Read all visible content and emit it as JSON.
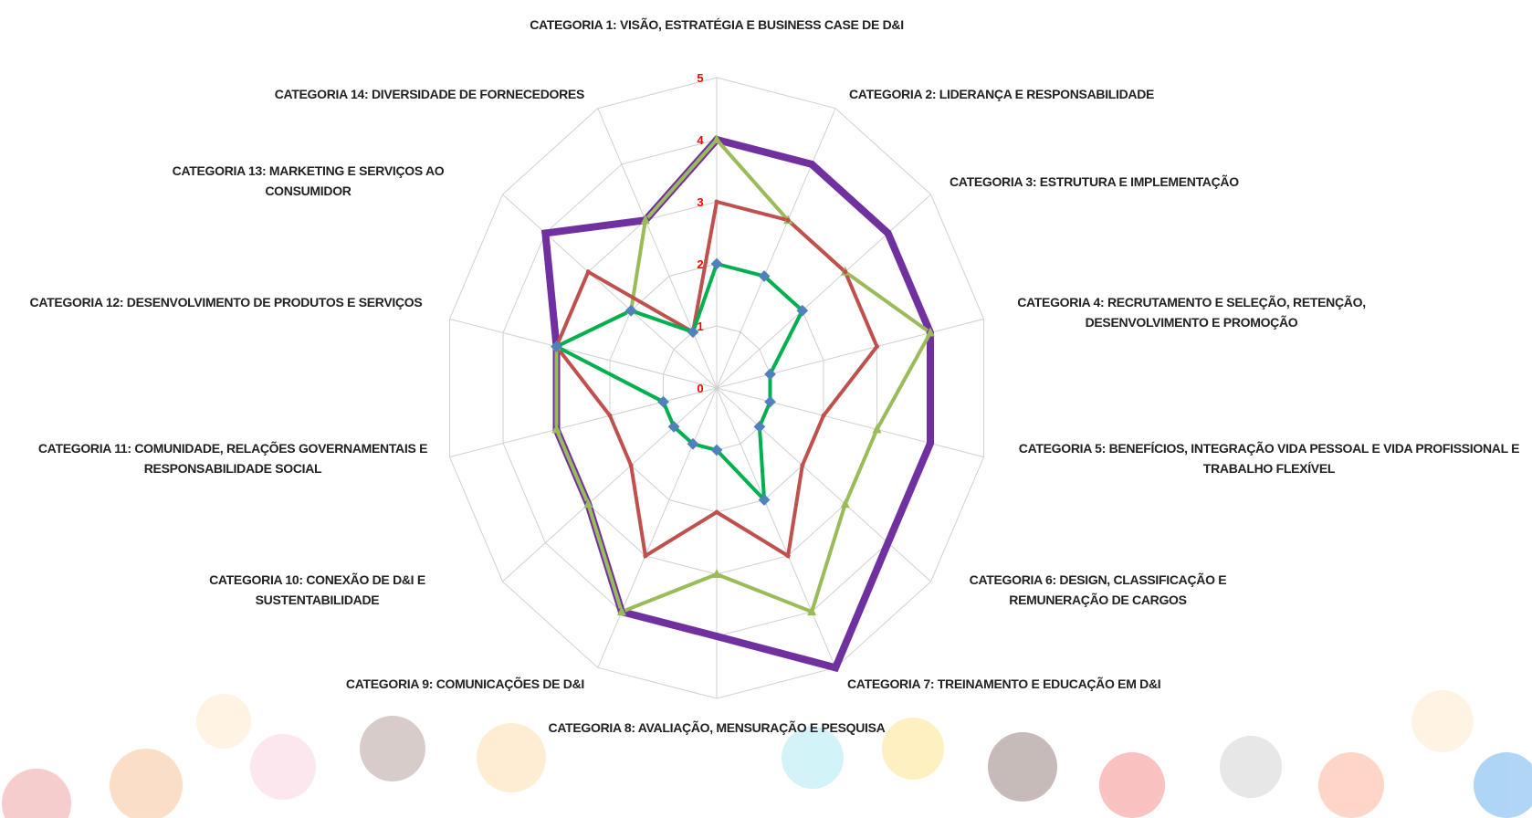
{
  "chart_data": {
    "type": "radar",
    "title": null,
    "categories": [
      "CATEGORIA 1: VISÃO, ESTRATÉGIA E BUSINESS CASE DE D&I",
      "CATEGORIA 2: LIDERANÇA E RESPONSABILIDADE",
      "CATEGORIA 3: ESTRUTURA E IMPLEMENTAÇÃO",
      "CATEGORIA 4: RECRUTAMENTO E SELEÇÃO, RETENÇÃO, DESENVOLVIMENTO E PROMOÇÃO",
      "CATEGORIA 5: BENEFÍCIOS, INTEGRAÇÃO VIDA PESSOAL E VIDA PROFISSIONAL E TRABALHO FLEXÍVEL",
      "CATEGORIA 6: DESIGN, CLASSIFICAÇÃO E REMUNERAÇÃO DE CARGOS",
      "CATEGORIA 7: TREINAMENTO E EDUCAÇÃO EM D&I",
      "CATEGORIA 8: AVALIAÇÃO, MENSURAÇÃO E PESQUISA",
      "CATEGORIA 9: COMUNICAÇÕES DE D&I",
      "CATEGORIA 10: CONEXÃO DE D&I E SUSTENTABILIDADE",
      "CATEGORIA 11: COMUNIDADE, RELAÇÕES GOVERNAMENTAIS E RESPONSABILIDADE SOCIAL",
      "CATEGORIA 12: DESENVOLVIMENTO DE PRODUTOS E SERVIÇOS",
      "CATEGORIA 13: MARKETING E SERVIÇOS AO CONSUMIDOR",
      "CATEGORIA 14: DIVERSIDADE DE FORNECEDORES"
    ],
    "series": [
      {
        "color": "#7030a0",
        "values": [
          4,
          4,
          4,
          4,
          4,
          4,
          5,
          4,
          4,
          3,
          3,
          3,
          4,
          3
        ]
      },
      {
        "color": "#9bbb59",
        "values": [
          4,
          3,
          3,
          4,
          3,
          3,
          4,
          3,
          4,
          3,
          3,
          3,
          2,
          3
        ]
      },
      {
        "color": "#c0504d",
        "values": [
          3,
          3,
          3,
          3,
          2,
          2,
          3,
          2,
          3,
          2,
          2,
          3,
          3,
          1
        ]
      },
      {
        "color": "#00b050",
        "values": [
          2,
          2,
          2,
          1,
          1,
          1,
          2,
          1,
          1,
          1,
          1,
          3,
          2,
          1
        ]
      }
    ],
    "rlim": [
      0,
      5
    ],
    "rticks": [
      0,
      1,
      2,
      3,
      4,
      5
    ],
    "tick_color": "#ff0000",
    "grid": true
  }
}
